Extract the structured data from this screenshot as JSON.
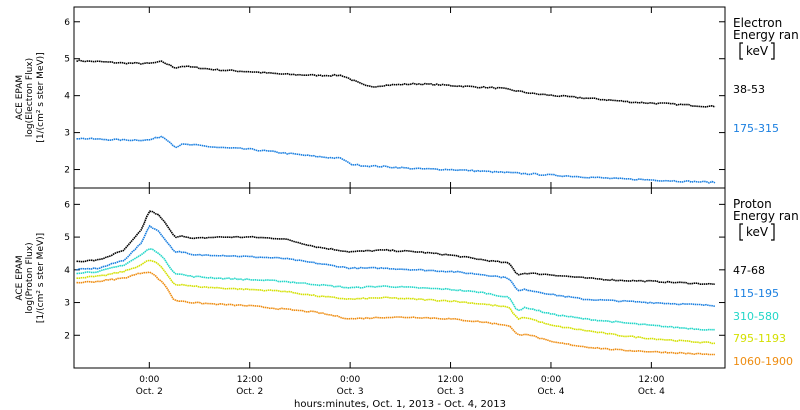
{
  "colors": {
    "black": "#000000",
    "blue": "#1a7fe0",
    "cyan": "#22d6c8",
    "yellow": "#d3e000",
    "orange": "#ee8c10"
  },
  "x_axis": {
    "label": "hours:minutes, Oct.  1, 2013 - Oct.  4, 2013",
    "range_hours": [
      -9.0,
      68.8
    ],
    "ticks": [
      {
        "hour": 0,
        "line1": "0:00",
        "line2": "Oct. 2"
      },
      {
        "hour": 12,
        "line1": "12:00",
        "line2": "Oct. 2"
      },
      {
        "hour": 24,
        "line1": "0:00",
        "line2": "Oct. 3"
      },
      {
        "hour": 36,
        "line1": "12:00",
        "line2": "Oct. 3"
      },
      {
        "hour": 48,
        "line1": "0:00",
        "line2": "Oct. 4"
      },
      {
        "hour": 60,
        "line1": "12:00",
        "line2": "Oct. 4"
      }
    ]
  },
  "chart_data": [
    {
      "type": "line",
      "panel": "electron",
      "ylabel": {
        "line1": "ACE EPAM",
        "line2": "log(Electron Flux)",
        "line3": "[1/(cm² s ster MeV)]"
      },
      "ylim": [
        1.5,
        6.4
      ],
      "yticks": [
        2,
        3,
        4,
        5,
        6
      ],
      "legend_title_line1": "Electron",
      "legend_title_line2": "Energy ran",
      "legend_unit": "keV",
      "series": [
        {
          "name": "38-53",
          "color": "#000000",
          "x": [
            -9,
            -6,
            -3,
            0,
            1.5,
            2.5,
            3,
            4,
            6,
            8,
            12,
            16,
            20,
            23,
            24,
            25,
            26,
            27,
            28,
            30,
            32,
            34,
            38,
            42,
            46,
            50,
            54,
            58,
            62,
            66,
            68
          ],
          "y": [
            4.95,
            4.92,
            4.88,
            4.87,
            4.92,
            4.82,
            4.75,
            4.8,
            4.75,
            4.7,
            4.65,
            4.58,
            4.55,
            4.55,
            4.45,
            4.35,
            4.25,
            4.25,
            4.28,
            4.3,
            4.32,
            4.3,
            4.25,
            4.2,
            4.05,
            3.97,
            3.9,
            3.82,
            3.78,
            3.72,
            3.7
          ]
        },
        {
          "name": "175-315",
          "color": "#1a7fe0",
          "x": [
            -9,
            -6,
            -3,
            0,
            1.5,
            2.5,
            3,
            4,
            6,
            8,
            12,
            16,
            20,
            23,
            24,
            25,
            26,
            28,
            32,
            36,
            40,
            44,
            48,
            52,
            56,
            60,
            64,
            68
          ],
          "y": [
            2.85,
            2.82,
            2.8,
            2.8,
            2.9,
            2.75,
            2.6,
            2.68,
            2.65,
            2.6,
            2.55,
            2.45,
            2.35,
            2.3,
            2.15,
            2.12,
            2.1,
            2.08,
            2.02,
            2.0,
            1.95,
            1.9,
            1.85,
            1.8,
            1.75,
            1.72,
            1.68,
            1.65
          ]
        }
      ]
    },
    {
      "type": "line",
      "panel": "proton",
      "ylabel": {
        "line1": "ACE EPAM",
        "line2": "log(Proton Flux)",
        "line3": "[1/(cm² s ster MeV)]"
      },
      "ylim": [
        1.0,
        6.5
      ],
      "yticks": [
        2,
        3,
        4,
        5,
        6
      ],
      "legend_title_line1": "Proton",
      "legend_title_line2": "Energy ran",
      "legend_unit": "keV",
      "series": [
        {
          "name": "47-68",
          "color": "#000000",
          "x": [
            -9,
            -6,
            -3,
            -1,
            0,
            1,
            2,
            3,
            4,
            5,
            8,
            12,
            16,
            20,
            24,
            28,
            32,
            36,
            40,
            43,
            44,
            45,
            48,
            52,
            56,
            60,
            64,
            68
          ],
          "y": [
            4.25,
            4.3,
            4.6,
            5.2,
            5.8,
            5.7,
            5.4,
            5.0,
            5.05,
            4.95,
            5.0,
            5.0,
            4.95,
            4.7,
            4.55,
            4.6,
            4.55,
            4.45,
            4.3,
            4.2,
            3.85,
            3.9,
            3.85,
            3.75,
            3.68,
            3.65,
            3.6,
            3.55
          ]
        },
        {
          "name": "115-195",
          "color": "#1a7fe0",
          "x": [
            -9,
            -6,
            -3,
            -1,
            0,
            1,
            2,
            3,
            4,
            5,
            8,
            12,
            16,
            20,
            24,
            28,
            32,
            36,
            40,
            43,
            44,
            45,
            48,
            52,
            56,
            60,
            64,
            68
          ],
          "y": [
            4.0,
            4.05,
            4.3,
            4.8,
            5.35,
            5.2,
            4.9,
            4.55,
            4.55,
            4.45,
            4.45,
            4.4,
            4.35,
            4.2,
            4.05,
            4.05,
            4.0,
            3.95,
            3.85,
            3.75,
            3.35,
            3.4,
            3.25,
            3.1,
            3.05,
            3.0,
            2.95,
            2.9
          ]
        },
        {
          "name": "310-580",
          "color": "#22d6c8",
          "x": [
            -9,
            -6,
            -3,
            -1,
            0,
            1,
            2,
            3,
            4,
            5,
            8,
            12,
            16,
            20,
            24,
            28,
            32,
            36,
            40,
            43,
            44,
            45,
            48,
            52,
            56,
            60,
            64,
            68
          ],
          "y": [
            3.9,
            3.95,
            4.15,
            4.45,
            4.65,
            4.55,
            4.25,
            3.9,
            3.85,
            3.8,
            3.75,
            3.7,
            3.65,
            3.55,
            3.45,
            3.5,
            3.45,
            3.4,
            3.3,
            3.15,
            2.75,
            2.85,
            2.65,
            2.5,
            2.4,
            2.3,
            2.22,
            2.15
          ]
        },
        {
          "name": "795-1193",
          "color": "#d3e000",
          "x": [
            -9,
            -6,
            -3,
            -1,
            0,
            1,
            2,
            3,
            4,
            5,
            8,
            12,
            16,
            20,
            24,
            28,
            32,
            36,
            40,
            43,
            44,
            45,
            48,
            52,
            56,
            60,
            64,
            68
          ],
          "y": [
            3.75,
            3.8,
            3.95,
            4.15,
            4.3,
            4.2,
            3.9,
            3.55,
            3.55,
            3.5,
            3.45,
            3.4,
            3.35,
            3.2,
            3.1,
            3.15,
            3.1,
            3.05,
            2.95,
            2.85,
            2.5,
            2.55,
            2.3,
            2.15,
            2.0,
            1.9,
            1.82,
            1.75
          ]
        },
        {
          "name": "1060-1900",
          "color": "#ee8c10",
          "x": [
            -9,
            -6,
            -3,
            -1,
            0,
            1,
            2,
            3,
            4,
            5,
            8,
            12,
            16,
            20,
            24,
            28,
            32,
            36,
            40,
            43,
            44,
            45,
            48,
            52,
            56,
            60,
            64,
            68
          ],
          "y": [
            3.6,
            3.65,
            3.75,
            3.9,
            3.95,
            3.75,
            3.5,
            3.05,
            3.05,
            3.0,
            2.95,
            2.9,
            2.8,
            2.7,
            2.5,
            2.55,
            2.55,
            2.5,
            2.4,
            2.3,
            2.0,
            2.05,
            1.8,
            1.65,
            1.55,
            1.5,
            1.45,
            1.4
          ]
        }
      ]
    }
  ]
}
